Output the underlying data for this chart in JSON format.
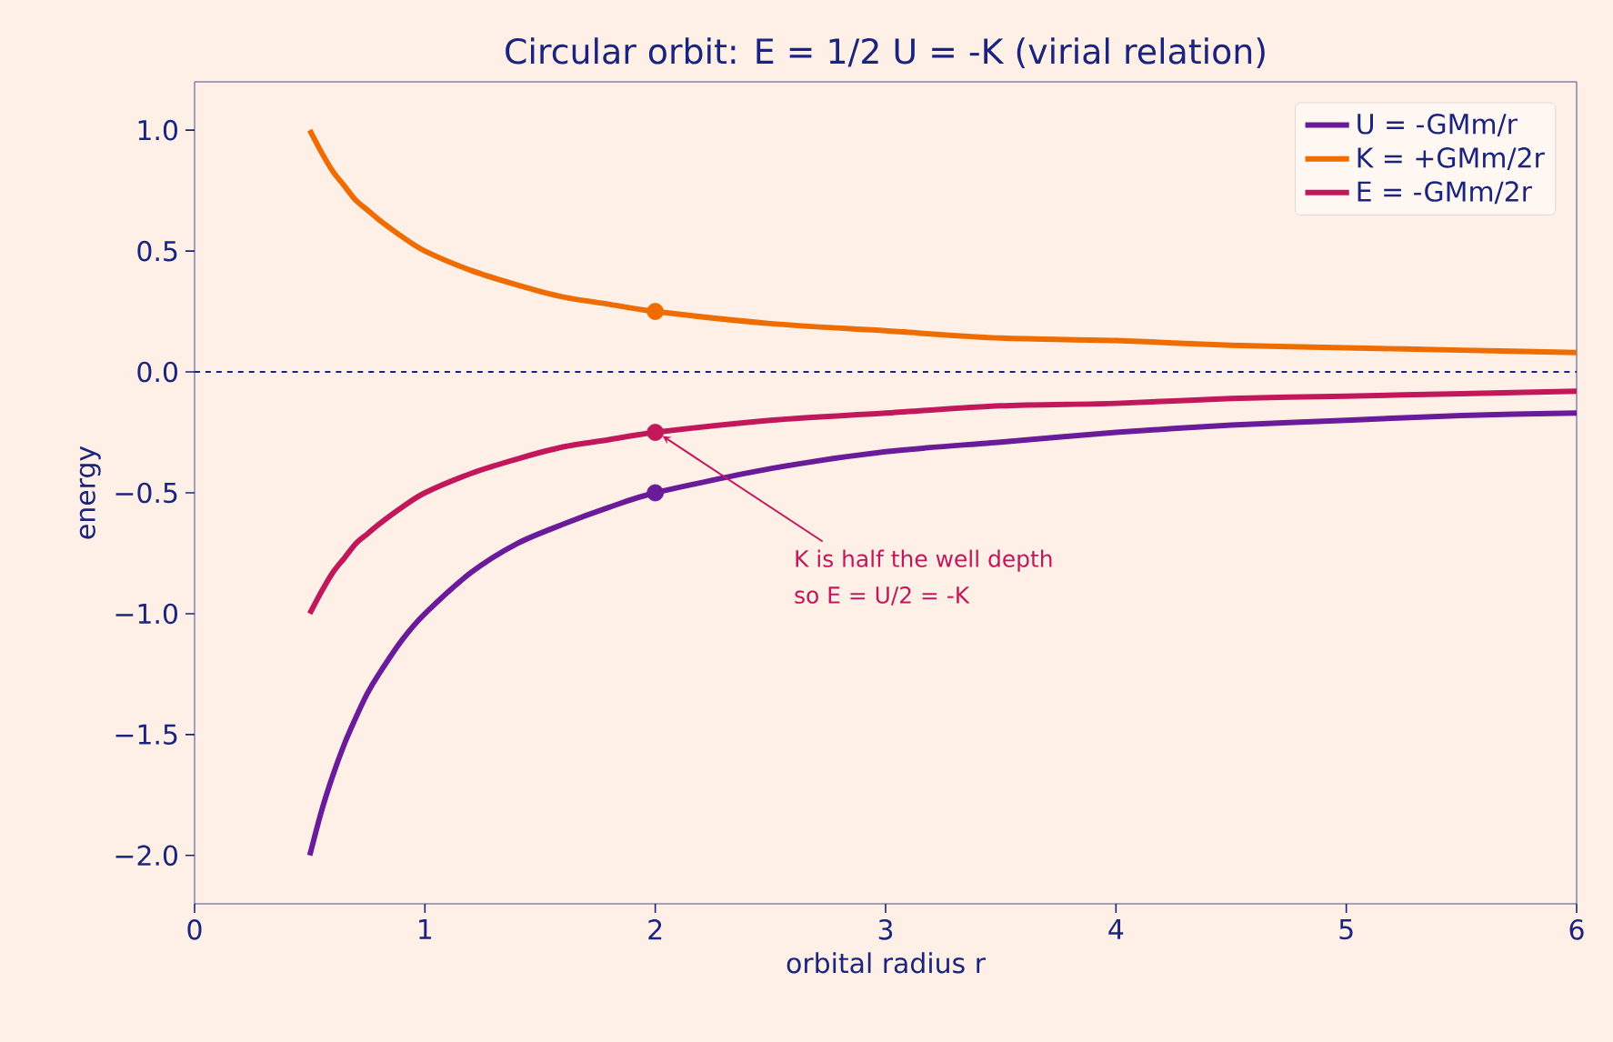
{
  "chart_data": {
    "type": "line",
    "title": "Circular orbit: E = 1/2 U = -K  (virial relation)",
    "xlabel": "orbital radius r",
    "ylabel": "energy",
    "x": [
      0.5,
      0.55,
      0.6,
      0.65,
      0.7,
      0.75,
      0.8,
      0.9,
      1,
      1.2,
      1.4,
      1.6,
      1.8,
      2,
      2.5,
      3,
      3.5,
      4,
      4.5,
      5,
      5.5,
      6
    ],
    "series": [
      {
        "name": "U = -GMm/r",
        "color": "#6a1b9a",
        "values": [
          -2,
          -1.82,
          -1.67,
          -1.54,
          -1.43,
          -1.33,
          -1.25,
          -1.11,
          -1,
          -0.83,
          -0.71,
          -0.63,
          -0.56,
          -0.5,
          -0.4,
          -0.33,
          -0.29,
          -0.25,
          -0.22,
          -0.2,
          -0.18,
          -0.17
        ]
      },
      {
        "name": "K = +GMm/2r",
        "color": "#ef6c00",
        "values": [
          1,
          0.91,
          0.83,
          0.77,
          0.71,
          0.67,
          0.63,
          0.56,
          0.5,
          0.42,
          0.36,
          0.31,
          0.28,
          0.25,
          0.2,
          0.17,
          0.14,
          0.13,
          0.11,
          0.1,
          0.09,
          0.08
        ]
      },
      {
        "name": "E = -GMm/2r",
        "color": "#c2185b",
        "values": [
          -1,
          -0.91,
          -0.83,
          -0.77,
          -0.71,
          -0.67,
          -0.63,
          -0.56,
          -0.5,
          -0.42,
          -0.36,
          -0.31,
          -0.28,
          -0.25,
          -0.2,
          -0.17,
          -0.14,
          -0.13,
          -0.11,
          -0.1,
          -0.09,
          -0.08
        ]
      },
      {
        "type": "scatter",
        "marker": "circle",
        "color": "#6a1b9a",
        "values": [
          null,
          null,
          null,
          null,
          null,
          null,
          null,
          null,
          null,
          null,
          null,
          null,
          null,
          -0.5,
          null,
          null,
          null,
          null,
          null,
          null,
          null,
          null
        ]
      },
      {
        "type": "scatter",
        "marker": "circle",
        "color": "#ef6c00",
        "values": [
          null,
          null,
          null,
          null,
          null,
          null,
          null,
          null,
          null,
          null,
          null,
          null,
          null,
          0.25,
          null,
          null,
          null,
          null,
          null,
          null,
          null,
          null
        ]
      },
      {
        "type": "scatter",
        "marker": "circle",
        "color": "#c2185b",
        "values": [
          null,
          null,
          null,
          null,
          null,
          null,
          null,
          null,
          null,
          null,
          null,
          null,
          null,
          -0.25,
          null,
          null,
          null,
          null,
          null,
          null,
          null,
          null
        ]
      }
    ],
    "xlim": [
      0,
      6
    ],
    "ylim": [
      -2.2,
      1.2
    ],
    "xticks": [
      0,
      1,
      2,
      3,
      4,
      5,
      6
    ],
    "yticks": [
      {
        "value": -2,
        "label": "−2.0"
      },
      {
        "value": -1.5,
        "label": "−1.5"
      },
      {
        "value": -1,
        "label": "−1.0"
      },
      {
        "value": -0.5,
        "label": "−0.5"
      },
      {
        "value": 0,
        "label": "0.0"
      },
      {
        "value": 0.5,
        "label": "0.5"
      },
      {
        "value": 1,
        "label": "1.0"
      }
    ],
    "ref_lines": [
      {
        "axis": "y",
        "value": 0,
        "color": "#1a237e",
        "line_style": "dashed"
      }
    ],
    "annotations": [
      {
        "text": "K is half the well depth",
        "x": 2,
        "y": -0.25
      },
      "so E = U/2 = -K"
    ],
    "legend": "top right",
    "grid": false,
    "marker": "none",
    "line_style": "solid"
  }
}
